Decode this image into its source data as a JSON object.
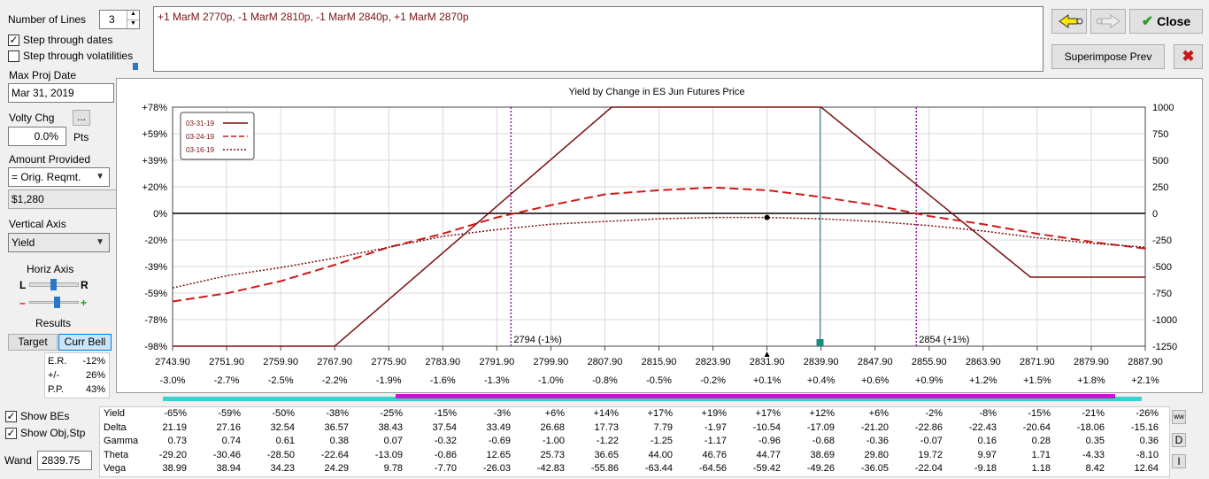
{
  "controls": {
    "number_of_lines_label": "Number of Lines",
    "number_of_lines_value": "3",
    "step_dates_label": "Step through dates",
    "step_dates_checked": true,
    "step_vol_label": "Step through volatilities",
    "step_vol_checked": false,
    "max_proj_date_label": "Max Proj Date",
    "max_proj_date_value": "Mar 31, 2019",
    "volty_chg_label": "Volty Chg",
    "volty_btn_label": "...",
    "volty_value": "0.0%",
    "volty_unit": "Pts",
    "amount_provided_label": "Amount Provided",
    "amount_provided_value": "= Orig. Reqmt.",
    "amount_value": "$1,280",
    "vertical_axis_label": "Vertical Axis",
    "vertical_axis_value": "Yield",
    "horiz_axis_label": "Horiz Axis",
    "slider_left": "L",
    "slider_right": "R",
    "slider_minus": "–",
    "slider_plus": "+",
    "results_label": "Results",
    "target_label": "Target",
    "curr_bell_label": "Curr Bell",
    "er_label": "E.R.",
    "er_value": "-12%",
    "pm_label": "+/-",
    "pm_value": "26%",
    "pp_label": "P.P.",
    "pp_value": "43%",
    "show_bes_label": "Show BEs",
    "show_obj_label": "Show Obj,Stp",
    "wand_label": "Wand",
    "wand_value": "2839.75"
  },
  "position_text": "+1 MarM 2770p, -1 MarM 2810p, -1 MarM 2840p, +1 MarM 2870p",
  "buttons": {
    "close_label": "Close",
    "superimpose_label": "Superimpose Prev"
  },
  "chart_data": {
    "type": "line",
    "title": "Yield by Change in ES Jun Futures Price",
    "x": [
      2743.9,
      2751.9,
      2759.9,
      2767.9,
      2775.9,
      2783.9,
      2791.9,
      2799.9,
      2807.9,
      2815.9,
      2823.9,
      2831.9,
      2839.9,
      2847.9,
      2855.9,
      2863.9,
      2871.9,
      2879.9,
      2887.9
    ],
    "x_tick_labels": [
      "2743.90",
      "2751.90",
      "2759.90",
      "2767.90",
      "2775.90",
      "2783.90",
      "2791.90",
      "2799.90",
      "2807.90",
      "2815.90",
      "2823.90",
      "2831.90",
      "2839.90",
      "2847.90",
      "2855.90",
      "2863.90",
      "2871.90",
      "2879.90",
      "2887.90"
    ],
    "x_pct_labels": [
      "-3.0%",
      "-2.7%",
      "-2.5%",
      "-2.2%",
      "-1.9%",
      "-1.6%",
      "-1.3%",
      "-1.0%",
      "-0.8%",
      "-0.5%",
      "-0.2%",
      "+0.1%",
      "+0.4%",
      "+0.6%",
      "+0.9%",
      "+1.2%",
      "+1.5%",
      "+1.8%",
      "+2.1%"
    ],
    "y_left_ticks": [
      "+78%",
      "+59%",
      "+39%",
      "+20%",
      "0%",
      "-20%",
      "-39%",
      "-59%",
      "-78%",
      "-98%"
    ],
    "y_right_ticks": [
      "1000",
      "750",
      "500",
      "250",
      "0",
      "-250",
      "-500",
      "-750",
      "-1000",
      "-1250"
    ],
    "ylim": [
      -98,
      78
    ],
    "legend": [
      "03-31-19",
      "03-24-19",
      "03-16-19"
    ],
    "legend_position": "top-left",
    "series": [
      {
        "name": "03-31-19",
        "style": "solid",
        "color": "#7a1010",
        "points": [
          [
            2743.9,
            -98
          ],
          [
            2767.9,
            -98
          ],
          [
            2808.9,
            78
          ],
          [
            2839.9,
            78
          ],
          [
            2870.9,
            -47
          ],
          [
            2887.9,
            -47
          ]
        ]
      },
      {
        "name": "03-24-19",
        "style": "dash",
        "color": "#d01818",
        "values": [
          -65,
          -59,
          -50,
          -38,
          -25,
          -15,
          -3,
          6,
          14,
          17,
          19,
          17,
          12,
          6,
          -2,
          -8,
          -15,
          -21,
          -26
        ]
      },
      {
        "name": "03-16-19",
        "style": "dot",
        "color": "#7a1010",
        "values": [
          -55,
          -46,
          -40,
          -33,
          -25,
          -17,
          -12,
          -8,
          -6,
          -4,
          -3,
          -3,
          -4,
          -6,
          -9,
          -13,
          -18,
          -22,
          -25
        ]
      }
    ],
    "annotations": [
      {
        "x": 2794,
        "label": "2794 (-1%)"
      },
      {
        "x": 2854,
        "label": "2854 (+1%)"
      }
    ],
    "wand_x": 2839.75
  },
  "greeks": {
    "rows": [
      {
        "name": "Yield",
        "values": [
          "-65%",
          "-59%",
          "-50%",
          "-38%",
          "-25%",
          "-15%",
          "-3%",
          "+6%",
          "+14%",
          "+17%",
          "+19%",
          "+17%",
          "+12%",
          "+6%",
          "-2%",
          "-8%",
          "-15%",
          "-21%",
          "-26%"
        ]
      },
      {
        "name": "Delta",
        "values": [
          "21.19",
          "27.16",
          "32.54",
          "36.57",
          "38.43",
          "37.54",
          "33.49",
          "26.68",
          "17.73",
          "7.79",
          "-1.97",
          "-10.54",
          "-17.09",
          "-21.20",
          "-22.86",
          "-22.43",
          "-20.64",
          "-18.06",
          "-15.16"
        ]
      },
      {
        "name": "Gamma",
        "values": [
          "0.73",
          "0.74",
          "0.61",
          "0.38",
          "0.07",
          "-0.32",
          "-0.69",
          "-1.00",
          "-1.22",
          "-1.25",
          "-1.17",
          "-0.96",
          "-0.68",
          "-0.36",
          "-0.07",
          "0.16",
          "0.28",
          "0.35",
          "0.36"
        ]
      },
      {
        "name": "Theta",
        "values": [
          "-29.20",
          "-30.46",
          "-28.50",
          "-22.64",
          "-13.09",
          "-0.86",
          "12.65",
          "25.73",
          "36.65",
          "44.00",
          "46.76",
          "44.77",
          "38.69",
          "29.80",
          "19.72",
          "9.97",
          "1.71",
          "-4.33",
          "-8.10"
        ]
      },
      {
        "name": "Vega",
        "values": [
          "38.99",
          "38.94",
          "34.23",
          "24.29",
          "9.78",
          "-7.70",
          "-26.03",
          "-42.83",
          "-55.86",
          "-63.44",
          "-64.56",
          "-59.42",
          "-49.26",
          "-36.05",
          "-22.04",
          "-9.18",
          "1.18",
          "8.42",
          "12.64"
        ]
      }
    ],
    "side_buttons": [
      "D",
      "I"
    ]
  }
}
